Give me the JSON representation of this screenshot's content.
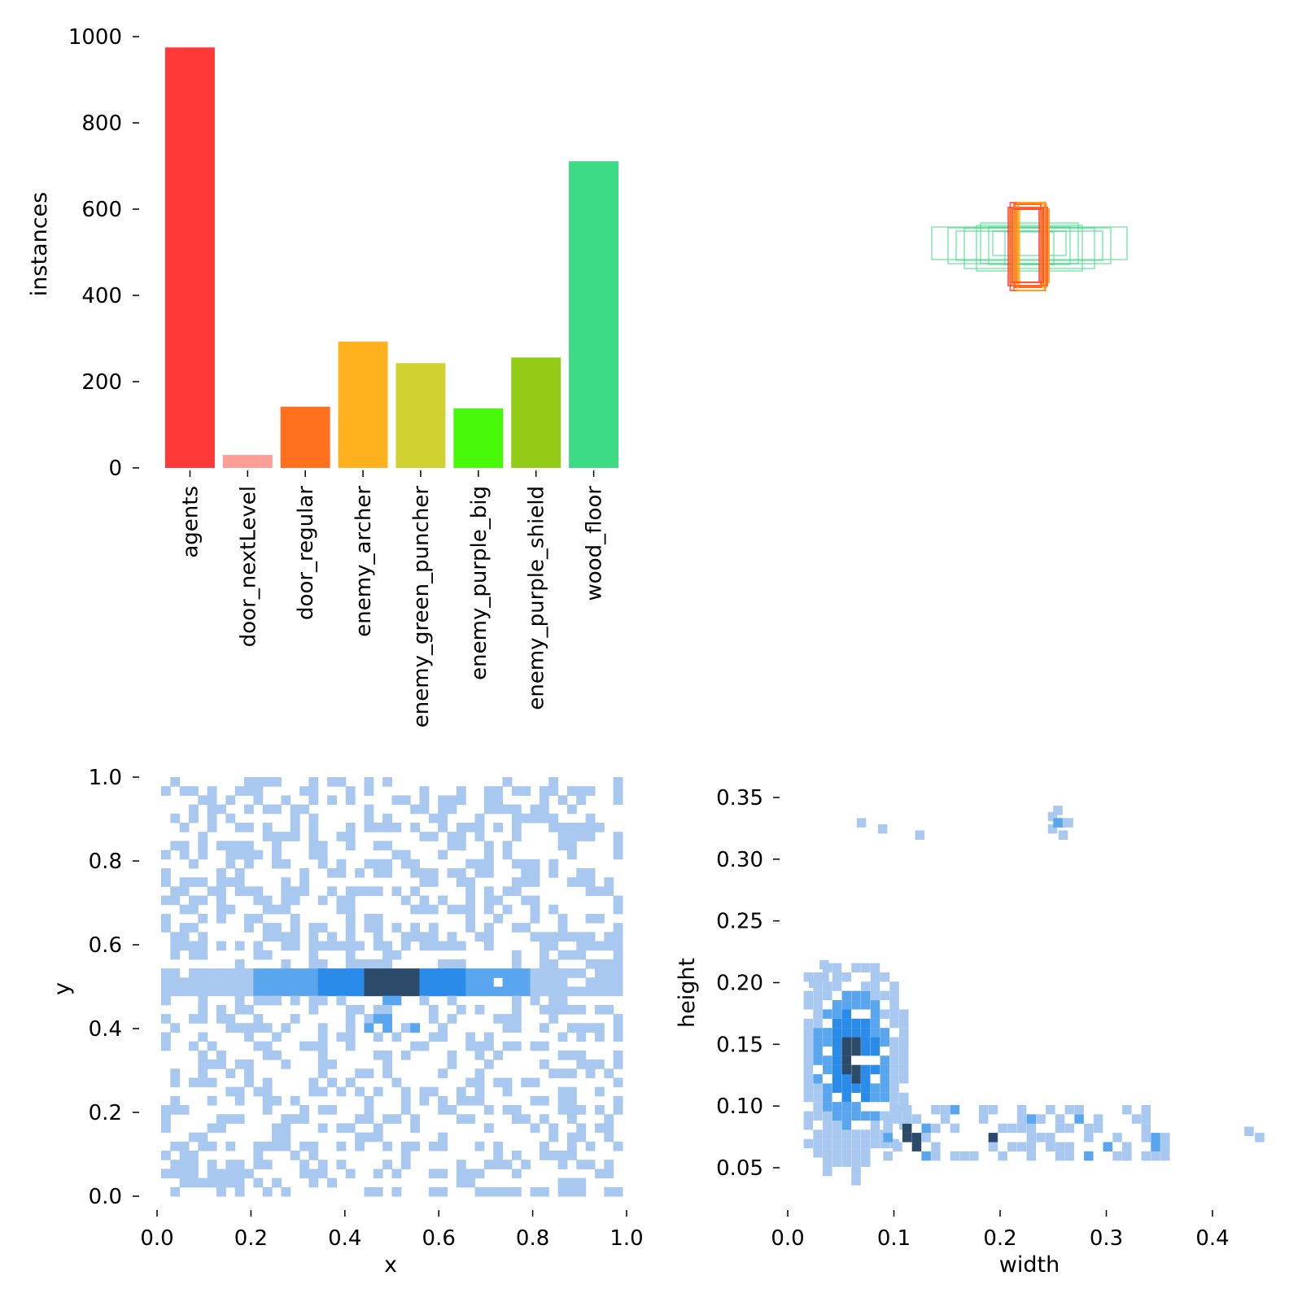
{
  "chart_data": [
    {
      "type": "bar",
      "ylabel": "instances",
      "ylim": [
        0,
        1000
      ],
      "yticks": [
        "0",
        "200",
        "400",
        "600",
        "800",
        "1000"
      ],
      "categories": [
        "agents",
        "door_nextLevel",
        "door_regular",
        "enemy_archer",
        "enemy_green_puncher",
        "enemy_purple_big",
        "enemy_purple_shield",
        "wood_floor"
      ],
      "values": [
        975,
        30,
        142,
        293,
        243,
        138,
        256,
        711
      ],
      "colors": [
        "#ff3838",
        "#ff9d97",
        "#ff701f",
        "#ffb21d",
        "#cfd231",
        "#48f90a",
        "#92cc17",
        "#3ddb86"
      ]
    },
    {
      "type": "boxes",
      "description_class_colors": [
        "#ff3838",
        "#ff701f",
        "#ffb21d",
        "#3ddb86"
      ]
    },
    {
      "type": "heatmap",
      "xlabel": "x",
      "ylabel": "y",
      "xlim": [
        0,
        1
      ],
      "ylim": [
        0,
        1
      ],
      "xticks": [
        "0.0",
        "0.2",
        "0.4",
        "0.6",
        "0.8",
        "1.0"
      ],
      "yticks": [
        "0.0",
        "0.2",
        "0.4",
        "0.6",
        "0.8",
        "1.0"
      ]
    },
    {
      "type": "heatmap",
      "xlabel": "width",
      "ylabel": "height",
      "xlim": [
        0,
        0.45
      ],
      "ylim": [
        0.02,
        0.36
      ],
      "xticks": [
        "0.0",
        "0.1",
        "0.2",
        "0.3",
        "0.4"
      ],
      "yticks": [
        "0.05",
        "0.10",
        "0.15",
        "0.20",
        "0.25",
        "0.30",
        "0.35"
      ]
    }
  ]
}
